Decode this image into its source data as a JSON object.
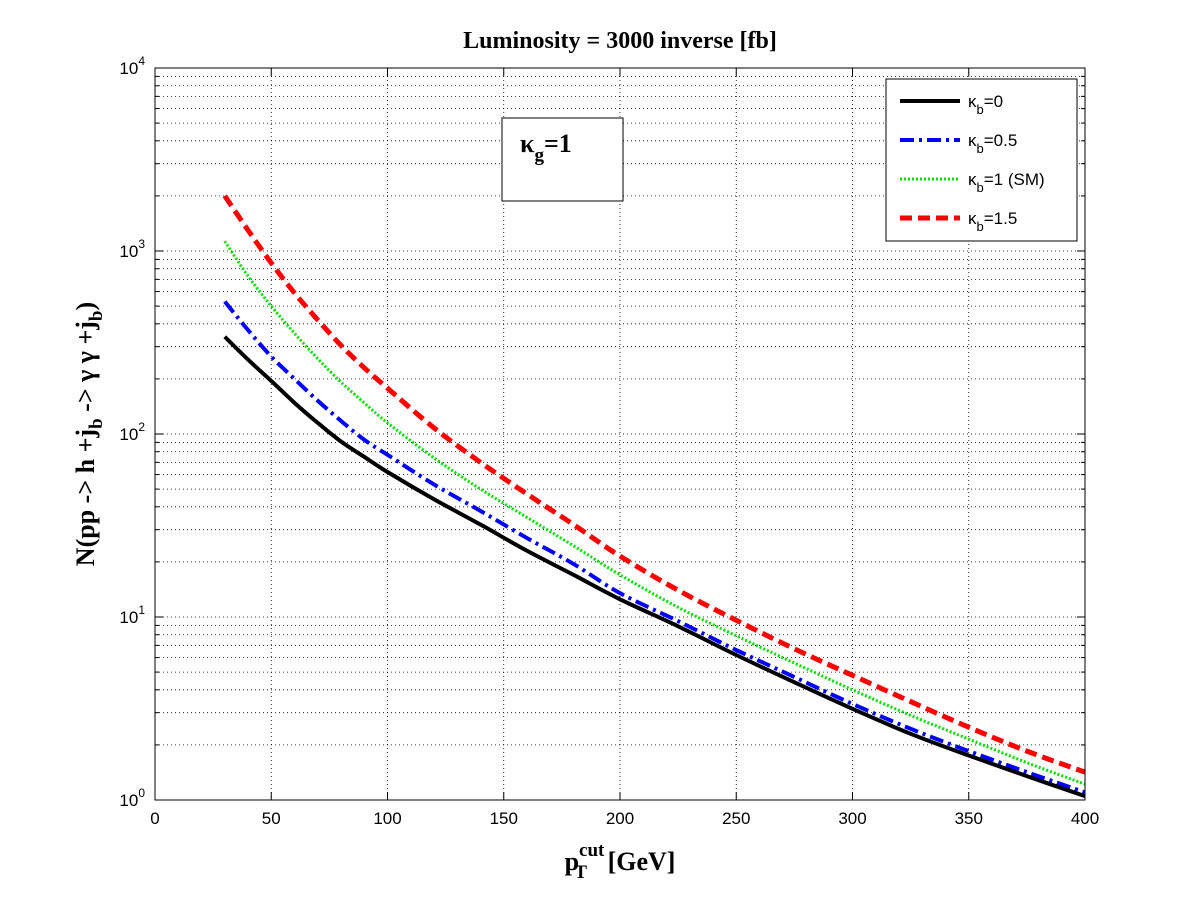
{
  "chart_data": {
    "type": "line",
    "title": "Luminosity = 3000 inverse [fb]",
    "xlabel": {
      "base": "p",
      "sub": "T",
      "sup": "cut",
      "unit": " [GeV]"
    },
    "ylabel": {
      "p1": "N(pp -> h +j",
      "s1": "b",
      "p2": " -> γ γ +j",
      "s2": "b",
      "p3": ")"
    },
    "xlim": [
      0,
      400
    ],
    "ylim_exp": [
      0,
      4
    ],
    "yscale": "log",
    "grid": true,
    "xticks": [
      0,
      50,
      100,
      150,
      200,
      250,
      300,
      350,
      400
    ],
    "xtick_labels": [
      "0",
      "50",
      "100",
      "150",
      "200",
      "250",
      "300",
      "350",
      "400"
    ],
    "yticks_exp": [
      0,
      1,
      2,
      3,
      4
    ],
    "ytick_base": "10",
    "ytick_exps": [
      "0",
      "1",
      "2",
      "3",
      "4"
    ],
    "x": [
      30,
      40,
      50,
      60,
      70,
      80,
      90,
      100,
      120,
      140,
      160,
      180,
      200,
      225,
      250,
      275,
      300,
      325,
      350,
      375,
      400
    ],
    "series": [
      {
        "name": "κb=0",
        "label_base": "κ",
        "label_sub": "b",
        "label_rest": "=0",
        "color": "#000000",
        "style": "solid",
        "values": [
          340,
          255,
          195,
          148,
          115,
          91,
          75,
          62,
          44,
          32,
          23,
          17,
          12.5,
          8.9,
          6.2,
          4.4,
          3.15,
          2.3,
          1.75,
          1.35,
          1.05
        ]
      },
      {
        "name": "κb=0.5",
        "label_base": "κ",
        "label_sub": "b",
        "label_rest": "=0.5",
        "color": "#0000ff",
        "style": "dashdot",
        "values": [
          530,
          370,
          265,
          200,
          152,
          118,
          93,
          77,
          53,
          38,
          27,
          19.5,
          13.5,
          9.5,
          6.6,
          4.7,
          3.35,
          2.45,
          1.85,
          1.42,
          1.1
        ]
      },
      {
        "name": "κb=1 (SM)",
        "label_base": "κ",
        "label_sub": "b",
        "label_rest": "=1 (SM)",
        "color": "#00dd00",
        "style": "dotted",
        "values": [
          1130,
          730,
          500,
          355,
          258,
          192,
          148,
          115,
          74,
          50,
          35,
          24.5,
          17,
          11.3,
          7.9,
          5.6,
          4.0,
          2.9,
          2.15,
          1.6,
          1.22
        ]
      },
      {
        "name": "κb=1.5",
        "label_base": "κ",
        "label_sub": "b",
        "label_rest": "=1.5",
        "color": "#ff0000",
        "style": "dashed",
        "values": [
          2000,
          1300,
          860,
          590,
          420,
          305,
          230,
          178,
          108,
          70,
          47,
          32,
          21.5,
          14,
          9.6,
          6.7,
          4.8,
          3.45,
          2.5,
          1.85,
          1.42
        ]
      }
    ],
    "annotation": {
      "base": "κ",
      "sub": "g",
      "rest": "=1"
    }
  }
}
